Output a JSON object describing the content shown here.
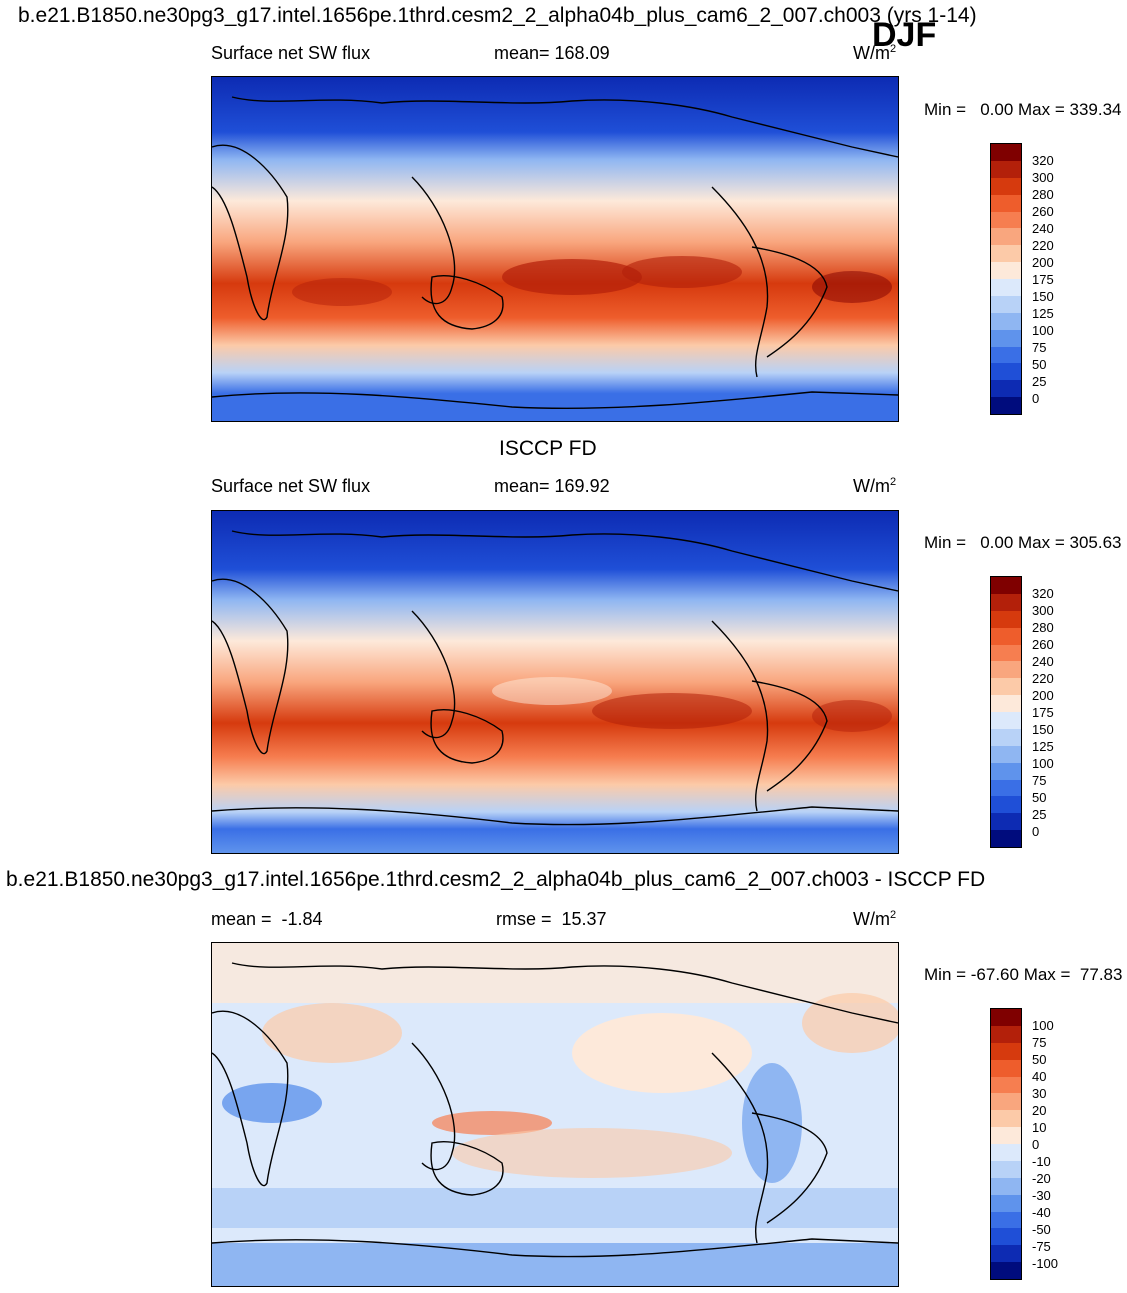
{
  "main_title": "b.e21.B1850.ne30pg3_g17.intel.1656pe.1thrd.cesm2_2_alpha04b_plus_cam6_2_007.ch003 (yrs 1-14)",
  "season": "DJF",
  "panels": [
    {
      "left_label": "Surface net SW flux",
      "center_label": "mean= 168.09",
      "units_base": "W/m",
      "units_exp": "2",
      "minmax": "Min =   0.00 Max = 339.34",
      "colorbar_labels": [
        "320",
        "300",
        "280",
        "260",
        "240",
        "220",
        "200",
        "175",
        "150",
        "125",
        "100",
        "75",
        "50",
        "25",
        "0"
      ]
    },
    {
      "heading": "ISCCP FD",
      "left_label": "Surface net SW flux",
      "center_label": "mean= 169.92",
      "units_base": "W/m",
      "units_exp": "2",
      "minmax": "Min =   0.00 Max = 305.63",
      "colorbar_labels": [
        "320",
        "300",
        "280",
        "260",
        "240",
        "220",
        "200",
        "175",
        "150",
        "125",
        "100",
        "75",
        "50",
        "25",
        "0"
      ]
    },
    {
      "heading": "b.e21.B1850.ne30pg3_g17.intel.1656pe.1thrd.cesm2_2_alpha04b_plus_cam6_2_007.ch003 - ISCCP FD",
      "left_label": "mean =  -1.84",
      "center_label": "rmse =  15.37",
      "units_base": "W/m",
      "units_exp": "2",
      "minmax": "Min = -67.60 Max =  77.83",
      "colorbar_labels": [
        "100",
        "75",
        "50",
        "40",
        "30",
        "20",
        "10",
        "0",
        "-10",
        "-20",
        "-30",
        "-40",
        "-50",
        "-75",
        "-100"
      ]
    }
  ],
  "colors": {
    "field_scale": [
      "#7f0000",
      "#b3200a",
      "#d63a0e",
      "#ee5d2c",
      "#f67e50",
      "#f9a67e",
      "#fccaa8",
      "#fde9da",
      "#dce9fb",
      "#b8d2f7",
      "#8fb6f2",
      "#5f93ec",
      "#3a6fe6",
      "#1f4fd7",
      "#0d2bb3",
      "#000c7d"
    ],
    "diff_scale": [
      "#7f0000",
      "#b3200a",
      "#d63a0e",
      "#ee5d2c",
      "#f67e50",
      "#f9a67e",
      "#fccaa8",
      "#fde9da",
      "#dce9fb",
      "#b8d2f7",
      "#8fb6f2",
      "#5f93ec",
      "#3a6fe6",
      "#1f4fd7",
      "#0d2bb3",
      "#000c7d"
    ]
  }
}
